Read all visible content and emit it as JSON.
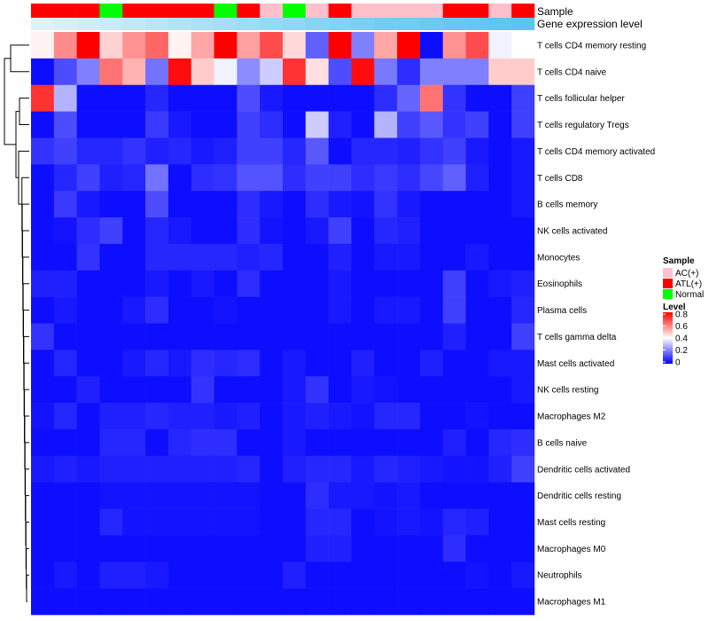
{
  "chart_data": {
    "type": "heatmap",
    "annotation_labels": [
      "Sample",
      "Gene expression level"
    ],
    "rows": [
      "T cells CD4 memory resting",
      "T cells CD4 naive",
      "T cells follicular helper",
      "T cells regulatory  Tregs",
      "T cells CD4 memory activated",
      "T cells CD8",
      "B cells memory",
      "NK cells activated",
      "Monocytes",
      "Eosinophils",
      "Plasma cells",
      "T cells gamma delta",
      "Mast cells activated",
      "NK cells resting",
      "Macrophages M2",
      "B cells naive",
      "Dendritic cells activated",
      "Dendritic cells resting",
      "Mast cells resting",
      "Macrophages M0",
      "Neutrophils",
      "Macrophages M1"
    ],
    "samples": [
      "ATL(+)",
      "ATL(+)",
      "ATL(+)",
      "Normal",
      "ATL(+)",
      "ATL(+)",
      "ATL(+)",
      "ATL(+)",
      "Normal",
      "ATL(+)",
      "AC(+)",
      "Normal",
      "AC(+)",
      "ATL(+)",
      "AC(+)",
      "AC(+)",
      "AC(+)",
      "AC(+)",
      "ATL(+)",
      "ATL(+)",
      "AC(+)",
      "ATL(+)"
    ],
    "gene_expression_level": [
      0.05,
      0.1,
      0.15,
      0.2,
      0.25,
      0.3,
      0.35,
      0.4,
      0.45,
      0.5,
      0.55,
      0.6,
      0.65,
      0.7,
      0.75,
      0.8,
      0.82,
      0.85,
      0.88,
      0.9,
      0.93,
      0.96
    ],
    "values": [
      [
        0.42,
        0.58,
        0.8,
        0.47,
        0.57,
        0.64,
        0.42,
        0.54,
        0.8,
        0.55,
        0.68,
        0.46,
        0.15,
        0.8,
        0.2,
        0.54,
        0.8,
        0.02,
        0.57,
        0.68,
        0.38,
        0.4
      ],
      [
        0.02,
        0.12,
        0.2,
        0.62,
        0.52,
        0.18,
        0.78,
        0.48,
        0.38,
        0.22,
        0.32,
        0.72,
        0.45,
        0.12,
        0.78,
        0.19,
        0.07,
        0.2,
        0.2,
        0.2,
        0.48,
        0.48
      ],
      [
        0.72,
        0.28,
        0.02,
        0.02,
        0.02,
        0.06,
        0.02,
        0.02,
        0.02,
        0.12,
        0.04,
        0.02,
        0.02,
        0.02,
        0.02,
        0.07,
        0.16,
        0.62,
        0.08,
        0.02,
        0.02,
        0.1
      ],
      [
        0.02,
        0.12,
        0.02,
        0.02,
        0.02,
        0.09,
        0.04,
        0.02,
        0.02,
        0.1,
        0.07,
        0.02,
        0.32,
        0.05,
        0.02,
        0.28,
        0.1,
        0.14,
        0.08,
        0.1,
        0.02,
        0.1
      ],
      [
        0.08,
        0.1,
        0.06,
        0.06,
        0.08,
        0.05,
        0.06,
        0.04,
        0.05,
        0.1,
        0.1,
        0.06,
        0.14,
        0.02,
        0.06,
        0.06,
        0.05,
        0.08,
        0.1,
        0.04,
        0.02,
        0.04
      ],
      [
        0.02,
        0.06,
        0.1,
        0.05,
        0.06,
        0.18,
        0.02,
        0.07,
        0.08,
        0.13,
        0.13,
        0.07,
        0.1,
        0.1,
        0.07,
        0.09,
        0.07,
        0.11,
        0.15,
        0.05,
        0.02,
        0.04
      ],
      [
        0.02,
        0.09,
        0.04,
        0.02,
        0.02,
        0.12,
        0.02,
        0.02,
        0.02,
        0.07,
        0.04,
        0.02,
        0.07,
        0.04,
        0.03,
        0.08,
        0.04,
        0.02,
        0.02,
        0.02,
        0.02,
        0.04
      ],
      [
        0.02,
        0.03,
        0.07,
        0.1,
        0.02,
        0.06,
        0.04,
        0.02,
        0.02,
        0.07,
        0.03,
        0.02,
        0.04,
        0.1,
        0.02,
        0.06,
        0.05,
        0.02,
        0.02,
        0.02,
        0.02,
        0.02
      ],
      [
        0.02,
        0.02,
        0.08,
        0.02,
        0.02,
        0.06,
        0.06,
        0.06,
        0.06,
        0.05,
        0.06,
        0.02,
        0.02,
        0.05,
        0.02,
        0.04,
        0.04,
        0.02,
        0.02,
        0.04,
        0.02,
        0.02
      ],
      [
        0.05,
        0.05,
        0.02,
        0.02,
        0.02,
        0.04,
        0.02,
        0.04,
        0.02,
        0.07,
        0.02,
        0.02,
        0.02,
        0.04,
        0.02,
        0.02,
        0.02,
        0.02,
        0.1,
        0.02,
        0.04,
        0.05
      ],
      [
        0.02,
        0.04,
        0.02,
        0.02,
        0.04,
        0.07,
        0.02,
        0.02,
        0.03,
        0.02,
        0.02,
        0.02,
        0.02,
        0.04,
        0.02,
        0.04,
        0.04,
        0.02,
        0.1,
        0.02,
        0.02,
        0.06
      ],
      [
        0.08,
        0.02,
        0.02,
        0.02,
        0.02,
        0.02,
        0.02,
        0.02,
        0.02,
        0.02,
        0.02,
        0.02,
        0.02,
        0.02,
        0.02,
        0.02,
        0.02,
        0.02,
        0.05,
        0.02,
        0.02,
        0.1
      ],
      [
        0.02,
        0.06,
        0.02,
        0.02,
        0.04,
        0.06,
        0.04,
        0.07,
        0.06,
        0.07,
        0.02,
        0.04,
        0.02,
        0.02,
        0.05,
        0.02,
        0.02,
        0.05,
        0.02,
        0.02,
        0.04,
        0.04
      ],
      [
        0.02,
        0.02,
        0.05,
        0.02,
        0.02,
        0.02,
        0.02,
        0.08,
        0.02,
        0.02,
        0.02,
        0.04,
        0.08,
        0.02,
        0.04,
        0.03,
        0.02,
        0.02,
        0.02,
        0.02,
        0.02,
        0.04
      ],
      [
        0.03,
        0.06,
        0.02,
        0.05,
        0.05,
        0.06,
        0.05,
        0.05,
        0.04,
        0.05,
        0.02,
        0.04,
        0.05,
        0.04,
        0.03,
        0.06,
        0.06,
        0.02,
        0.02,
        0.03,
        0.02,
        0.02
      ],
      [
        0.02,
        0.02,
        0.02,
        0.06,
        0.06,
        0.02,
        0.06,
        0.07,
        0.07,
        0.02,
        0.02,
        0.04,
        0.02,
        0.02,
        0.02,
        0.02,
        0.02,
        0.02,
        0.05,
        0.02,
        0.06,
        0.07
      ],
      [
        0.04,
        0.05,
        0.04,
        0.05,
        0.05,
        0.05,
        0.05,
        0.05,
        0.05,
        0.06,
        0.02,
        0.05,
        0.06,
        0.06,
        0.04,
        0.06,
        0.05,
        0.04,
        0.03,
        0.03,
        0.05,
        0.1
      ],
      [
        0.02,
        0.02,
        0.02,
        0.03,
        0.03,
        0.03,
        0.03,
        0.03,
        0.03,
        0.03,
        0.02,
        0.02,
        0.07,
        0.04,
        0.04,
        0.03,
        0.04,
        0.02,
        0.02,
        0.02,
        0.02,
        0.02
      ],
      [
        0.02,
        0.02,
        0.02,
        0.06,
        0.03,
        0.03,
        0.03,
        0.03,
        0.03,
        0.03,
        0.02,
        0.02,
        0.06,
        0.06,
        0.02,
        0.03,
        0.04,
        0.03,
        0.06,
        0.05,
        0.02,
        0.02
      ],
      [
        0.02,
        0.02,
        0.02,
        0.02,
        0.02,
        0.02,
        0.02,
        0.02,
        0.02,
        0.02,
        0.02,
        0.02,
        0.05,
        0.05,
        0.02,
        0.02,
        0.02,
        0.02,
        0.07,
        0.02,
        0.02,
        0.02
      ],
      [
        0.02,
        0.04,
        0.02,
        0.05,
        0.05,
        0.04,
        0.02,
        0.02,
        0.02,
        0.02,
        0.02,
        0.05,
        0.02,
        0.02,
        0.02,
        0.02,
        0.02,
        0.02,
        0.02,
        0.03,
        0.02,
        0.04
      ],
      [
        0.02,
        0.02,
        0.02,
        0.02,
        0.02,
        0.02,
        0.02,
        0.02,
        0.02,
        0.02,
        0.02,
        0.02,
        0.02,
        0.02,
        0.02,
        0.02,
        0.02,
        0.02,
        0.02,
        0.02,
        0.02,
        0.02
      ]
    ],
    "legend_sample": {
      "title": "Sample",
      "entries": [
        {
          "label": "AC(+)",
          "color": "#ffc0cb"
        },
        {
          "label": "ATL(+)",
          "color": "#ff0000"
        },
        {
          "label": "Normal",
          "color": "#00ff00"
        }
      ]
    },
    "legend_level": {
      "title": "Level",
      "range": [
        0,
        0.8
      ],
      "ticks": [
        "0.8",
        "0.6",
        "0.4",
        "0.2",
        "0"
      ],
      "colors": {
        "low": "#0000ff",
        "mid": "#ffffff",
        "high": "#ff0000"
      }
    },
    "annotation_colors": {
      "expr_low": "#e6f4fb",
      "expr_high": "#56c3ef"
    }
  }
}
